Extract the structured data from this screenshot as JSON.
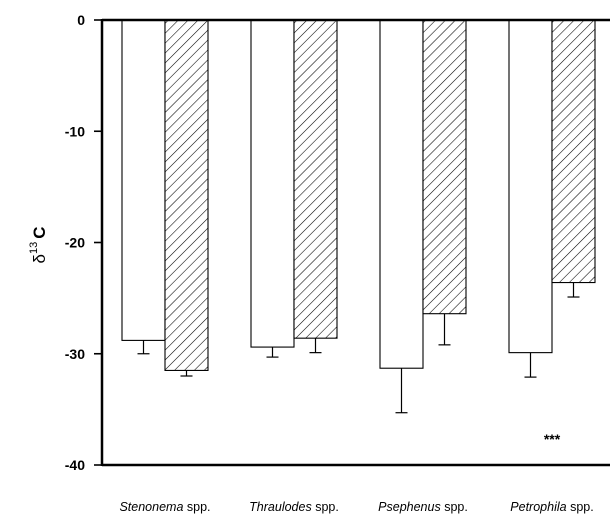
{
  "chart_data": {
    "type": "bar",
    "title": "",
    "xlabel": "",
    "ylabel": {
      "symbol": "δ",
      "superscript": "13",
      "element": "C"
    },
    "ylim": [
      -40,
      0
    ],
    "yticks": [
      0,
      -10,
      -20,
      -30,
      -40
    ],
    "ytick_labels": [
      "0",
      "-10",
      "-20",
      "-30",
      "-40"
    ],
    "categories": [
      {
        "genus": "Stenonema",
        "suffix": " spp."
      },
      {
        "genus": "Thraulodes",
        "suffix": " spp."
      },
      {
        "genus": "Psephenus",
        "suffix": " spp."
      },
      {
        "genus": "Petrophila",
        "suffix": " spp."
      }
    ],
    "series": [
      {
        "fill": "open",
        "values": [
          -28.8,
          -29.4,
          -31.3,
          -29.9
        ],
        "errors": [
          1.2,
          0.9,
          4.0,
          2.2
        ]
      },
      {
        "fill": "hatched",
        "values": [
          -31.5,
          -28.6,
          -26.4,
          -23.6
        ],
        "errors": [
          0.5,
          1.3,
          2.8,
          1.3
        ]
      }
    ],
    "annotations": [
      {
        "text": "***",
        "category_index": 3
      }
    ],
    "colors": {
      "bar_fill": "#ffffff",
      "stroke": "#000000"
    }
  }
}
